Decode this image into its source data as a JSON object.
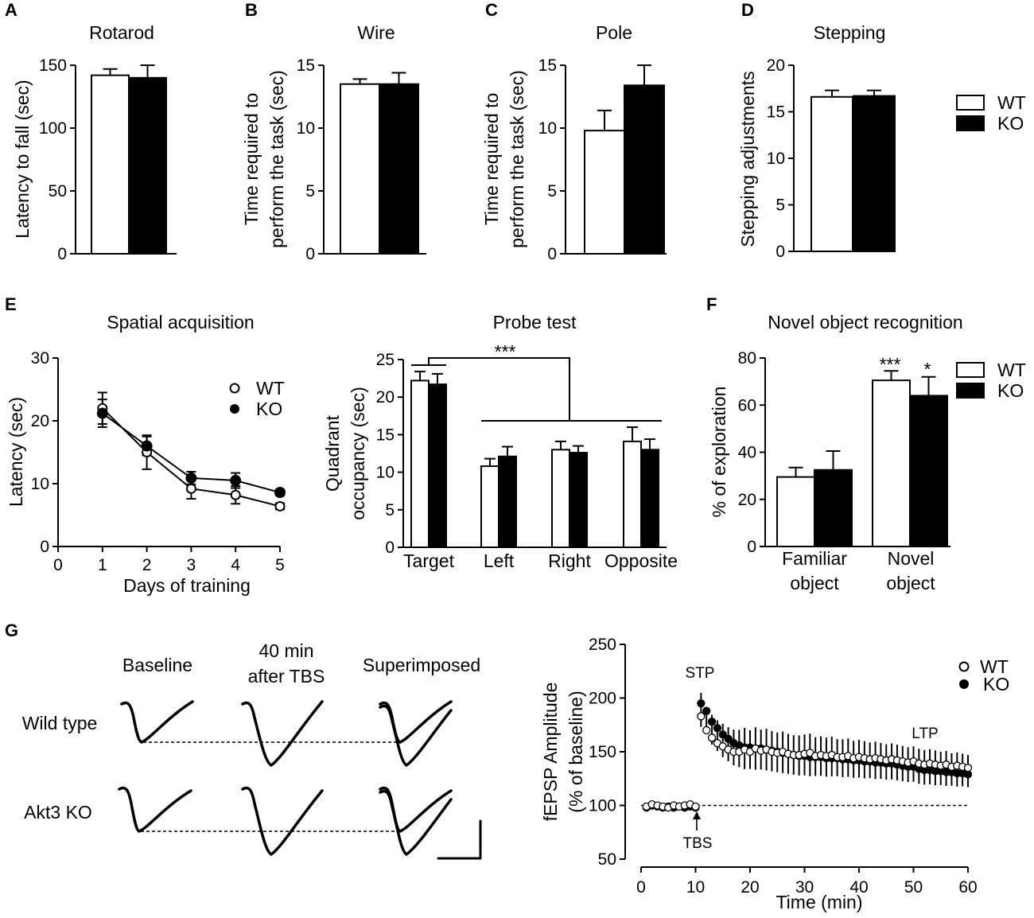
{
  "colors": {
    "wt_fill": "#ffffff",
    "ko_fill": "#000000",
    "stroke": "#000000"
  },
  "legend": {
    "wt": "WT",
    "ko": "KO"
  },
  "chart_data": [
    {
      "panel": "A",
      "type": "bar",
      "title": "Rotarod",
      "ylabel": "Latency  to fall (sec)",
      "categories": [
        ""
      ],
      "series": [
        {
          "name": "WT",
          "values": [
            142
          ],
          "errors": [
            5
          ]
        },
        {
          "name": "KO",
          "values": [
            140
          ],
          "errors": [
            10
          ]
        }
      ],
      "ylim": [
        0,
        150
      ],
      "yticks": [
        "0",
        "50",
        "100",
        "150"
      ]
    },
    {
      "panel": "B",
      "type": "bar",
      "title": "Wire",
      "ylabel": [
        "Time required to",
        "perform the task (sec)"
      ],
      "categories": [
        ""
      ],
      "series": [
        {
          "name": "WT",
          "values": [
            13.5
          ],
          "errors": [
            0.4
          ]
        },
        {
          "name": "KO",
          "values": [
            13.5
          ],
          "errors": [
            0.9
          ]
        }
      ],
      "ylim": [
        0,
        15
      ],
      "yticks": [
        "0",
        "5",
        "10",
        "15"
      ]
    },
    {
      "panel": "C",
      "type": "bar",
      "title": "Pole",
      "ylabel": [
        "Time required to",
        "perform the task (sec)"
      ],
      "categories": [
        ""
      ],
      "series": [
        {
          "name": "WT",
          "values": [
            9.8
          ],
          "errors": [
            1.6
          ]
        },
        {
          "name": "KO",
          "values": [
            13.4
          ],
          "errors": [
            1.6
          ]
        }
      ],
      "ylim": [
        0,
        15
      ],
      "yticks": [
        "0",
        "5",
        "10",
        "15"
      ]
    },
    {
      "panel": "D",
      "type": "bar",
      "title": "Stepping",
      "ylabel": "Stepping adjustments",
      "categories": [
        ""
      ],
      "series": [
        {
          "name": "WT",
          "values": [
            16.6
          ],
          "errors": [
            0.7
          ]
        },
        {
          "name": "KO",
          "values": [
            16.7
          ],
          "errors": [
            0.6
          ]
        }
      ],
      "ylim": [
        0,
        20
      ],
      "yticks": [
        "0",
        "5",
        "10",
        "15",
        "20"
      ]
    },
    {
      "panel": "E",
      "type": "line",
      "title": "Spatial acquisition",
      "xlabel": "Days of training",
      "ylabel": "Latency (sec)",
      "x": [
        1,
        2,
        3,
        4,
        5
      ],
      "series": [
        {
          "name": "WT",
          "marker": "open",
          "values": [
            22,
            15,
            9.2,
            8.2,
            6.4
          ],
          "errors": [
            2.5,
            2.7,
            1.6,
            1.4,
            0.5
          ]
        },
        {
          "name": "KO",
          "marker": "filled",
          "values": [
            21.2,
            16,
            10.9,
            10.5,
            8.6
          ],
          "errors": [
            2.2,
            1.5,
            1.0,
            1.2,
            0.5
          ]
        }
      ],
      "xlim": [
        0,
        5
      ],
      "ylim": [
        0,
        30
      ],
      "xticks": [
        "0",
        "1",
        "2",
        "3",
        "4",
        "5"
      ],
      "yticks": [
        "0",
        "10",
        "20",
        "30"
      ]
    },
    {
      "panel": "E",
      "type": "bar",
      "title": "Probe test",
      "ylabel": [
        "Quadrant",
        "occupancy (sec)"
      ],
      "categories": [
        "Target",
        "Left",
        "Right",
        "Opposite"
      ],
      "series": [
        {
          "name": "WT",
          "values": [
            22.2,
            10.8,
            13,
            14.1
          ],
          "errors": [
            1.2,
            1.0,
            1.1,
            1.9
          ]
        },
        {
          "name": "KO",
          "values": [
            21.7,
            12.1,
            12.6,
            13
          ],
          "errors": [
            1.4,
            1.3,
            0.9,
            1.4
          ]
        }
      ],
      "annotation": "***",
      "ylim": [
        0,
        25
      ],
      "yticks": [
        "0",
        "5",
        "10",
        "15",
        "20",
        "25"
      ]
    },
    {
      "panel": "F",
      "type": "bar",
      "title": "Novel object recognition",
      "ylabel": "% of exploration",
      "categories": [
        "Familiar\nobject",
        "Novel\nobject"
      ],
      "category_lines": [
        [
          "Familiar",
          "object"
        ],
        [
          "Novel",
          "object"
        ]
      ],
      "series": [
        {
          "name": "WT",
          "values": [
            29.5,
            70.5
          ],
          "errors": [
            4,
            4
          ],
          "sig": [
            "",
            "***"
          ]
        },
        {
          "name": "KO",
          "values": [
            32.5,
            64
          ],
          "errors": [
            8,
            8
          ],
          "sig": [
            "",
            "*"
          ]
        }
      ],
      "ylim": [
        0,
        80
      ],
      "yticks": [
        "0",
        "20",
        "40",
        "60",
        "80"
      ]
    },
    {
      "panel": "G",
      "type": "scatter",
      "title": "",
      "xlabel": "Time (min)",
      "ylabel": [
        "fEPSP Amplitude",
        "(% of baseline)"
      ],
      "xlim": [
        0,
        60
      ],
      "ylim": [
        50,
        250
      ],
      "xticks": [
        "0",
        "10",
        "20",
        "30",
        "40",
        "50",
        "60"
      ],
      "yticks": [
        "50",
        "100",
        "150",
        "200",
        "250"
      ],
      "annotations": [
        "STP",
        "LTP",
        "TBS"
      ],
      "x": [
        1,
        2,
        3,
        4,
        5,
        6,
        7,
        8,
        9,
        10,
        11,
        12,
        13,
        14,
        15,
        16,
        17,
        18,
        19,
        20,
        21,
        22,
        23,
        24,
        25,
        26,
        27,
        28,
        29,
        30,
        31,
        32,
        33,
        34,
        35,
        36,
        37,
        38,
        39,
        40,
        41,
        42,
        43,
        44,
        45,
        46,
        47,
        48,
        49,
        50,
        51,
        52,
        53,
        54,
        55,
        56,
        57,
        58,
        59,
        60
      ],
      "series": [
        {
          "name": "WT",
          "marker": "open",
          "values": [
            99,
            101,
            100,
            99,
            98,
            100,
            99,
            100,
            101,
            99,
            183,
            170,
            163,
            158,
            155,
            152,
            150,
            150,
            152,
            150,
            153,
            151,
            152,
            150,
            149,
            150,
            148,
            147,
            147,
            148,
            149,
            146,
            147,
            146,
            147,
            145,
            145,
            146,
            144,
            145,
            144,
            143,
            144,
            143,
            142,
            143,
            142,
            141,
            140,
            141,
            139,
            138,
            139,
            138,
            137,
            138,
            136,
            137,
            136,
            135
          ]
        },
        {
          "name": "KO",
          "marker": "filled",
          "values": [
            98,
            100,
            99,
            98,
            99,
            98,
            99,
            98,
            99,
            98,
            195,
            188,
            178,
            172,
            166,
            162,
            158,
            156,
            154,
            154,
            153,
            153,
            152,
            151,
            150,
            149,
            148,
            147,
            146,
            146,
            145,
            145,
            145,
            144,
            144,
            144,
            143,
            143,
            142,
            142,
            141,
            141,
            140,
            140,
            139,
            139,
            138,
            137,
            136,
            136,
            134,
            133,
            133,
            132,
            132,
            131,
            131,
            130,
            130,
            129
          ]
        }
      ]
    }
  ],
  "panelsA": {
    "label": "A",
    "title": "Rotarod",
    "ylabel": "Latency  to fall (sec)"
  },
  "panelB": {
    "label": "B",
    "title": "Wire",
    "ylabel1": "Time required to",
    "ylabel2": "perform the task (sec)"
  },
  "panelC": {
    "label": "C",
    "title": "Pole",
    "ylabel1": "Time required to",
    "ylabel2": "perform the task (sec)"
  },
  "panelD": {
    "label": "D",
    "title": "Stepping",
    "ylabel": "Stepping adjustments"
  },
  "panelE": {
    "label": "E",
    "title1": "Spatial acquisition",
    "title2": "Probe test",
    "xlabel": "Days of training",
    "ylabel": "Latency (sec)",
    "ylabel2a": "Quadrant",
    "ylabel2b": "occupancy (sec)",
    "sig": "***"
  },
  "panelF": {
    "label": "F",
    "title": "Novel object recognition",
    "ylabel": "% of exploration",
    "cat1a": "Familiar",
    "cat1b": "object",
    "cat2a": "Novel",
    "cat2b": "object",
    "sig1": "***",
    "sig2": "*"
  },
  "panelG": {
    "label": "G",
    "col1": "Baseline",
    "col2a": "40 min",
    "col2b": "after TBS",
    "col3": "Superimposed",
    "row1": "Wild type",
    "row2": "Akt3 KO",
    "xlabel": "Time (min)",
    "ylabel1": "fEPSP Amplitude",
    "ylabel2": "(% of baseline)",
    "stp": "STP",
    "ltp": "LTP",
    "tbs": "TBS"
  }
}
